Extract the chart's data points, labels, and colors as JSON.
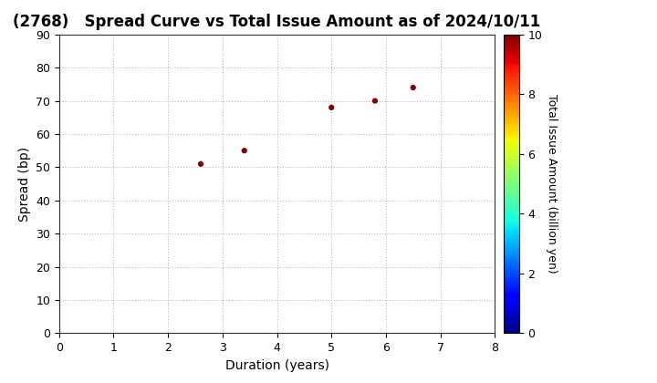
{
  "title": "(2768)   Spread Curve vs Total Issue Amount as of 2024/10/11",
  "xlabel": "Duration (years)",
  "ylabel": "Spread (bp)",
  "colorbar_label": "Total Issue Amount (billion yen)",
  "points": [
    {
      "duration": 2.6,
      "spread": 51,
      "amount": 10.0
    },
    {
      "duration": 3.4,
      "spread": 55,
      "amount": 10.0
    },
    {
      "duration": 5.0,
      "spread": 68,
      "amount": 10.0
    },
    {
      "duration": 5.8,
      "spread": 70,
      "amount": 10.0
    },
    {
      "duration": 6.5,
      "spread": 74,
      "amount": 10.0
    }
  ],
  "xlim": [
    0,
    8
  ],
  "ylim": [
    0,
    90
  ],
  "xticks": [
    0,
    1,
    2,
    3,
    4,
    5,
    6,
    7,
    8
  ],
  "yticks": [
    0,
    10,
    20,
    30,
    40,
    50,
    60,
    70,
    80,
    90
  ],
  "colorbar_ticks": [
    0,
    2,
    4,
    6,
    8,
    10
  ],
  "marker_size": 12,
  "background_color": "#ffffff",
  "grid_color": "#bbbbbb",
  "title_fontsize": 12,
  "axis_fontsize": 10,
  "tick_fontsize": 9,
  "cbar_fontsize": 9
}
